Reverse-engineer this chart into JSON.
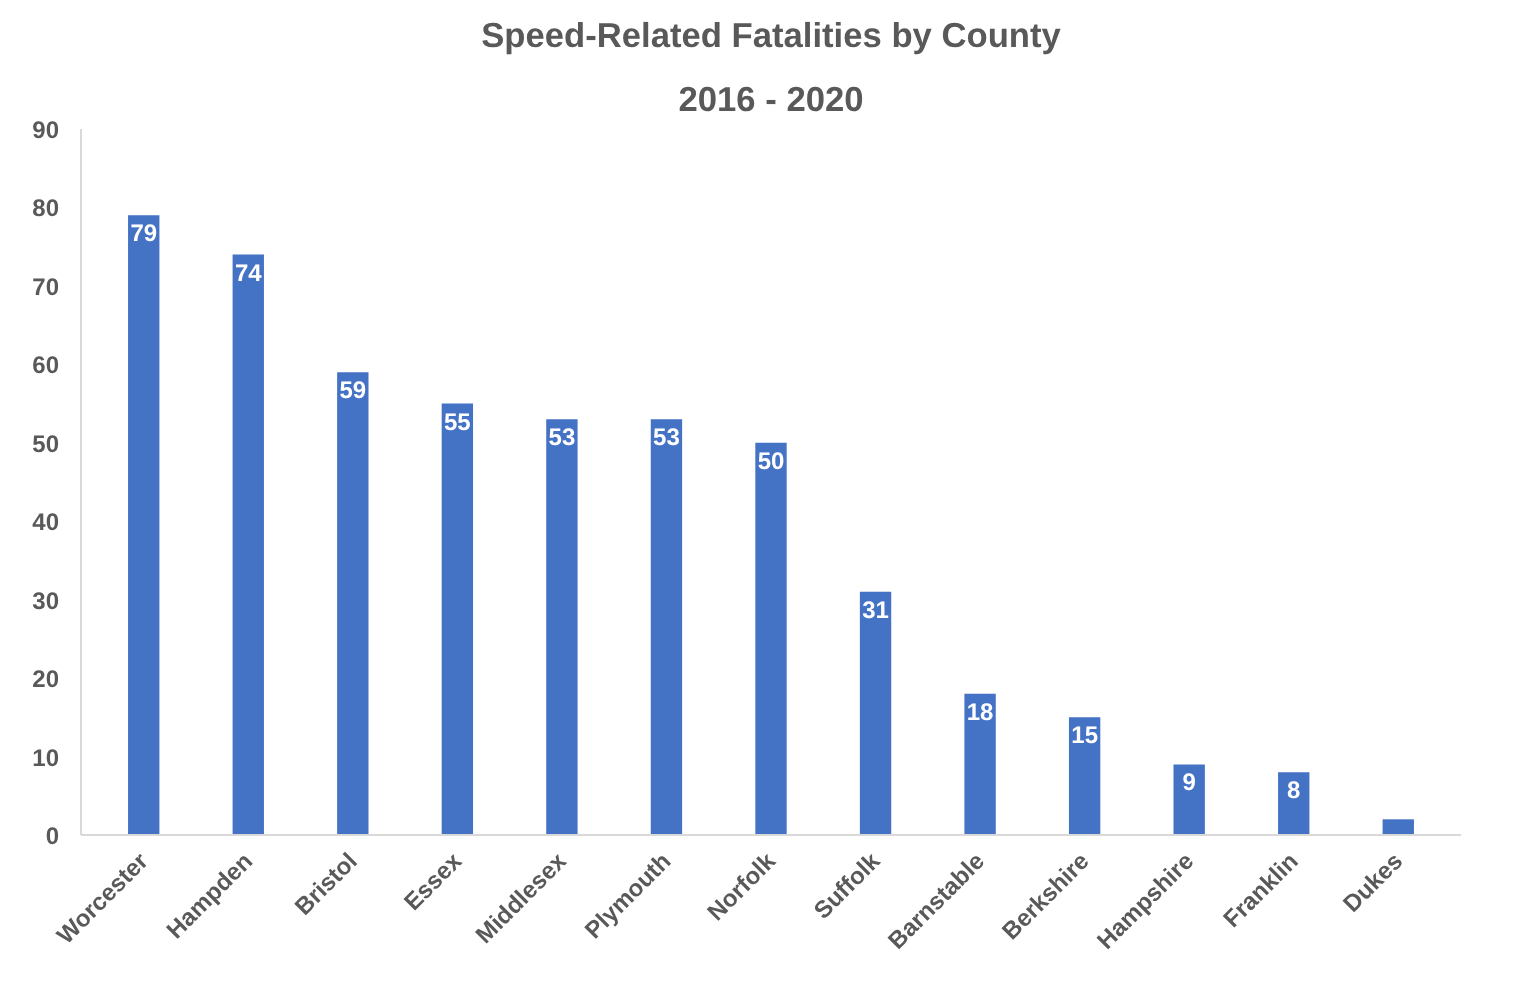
{
  "chart_data": {
    "type": "bar",
    "title": "Speed-Related Fatalities by County",
    "subtitle": "2016 - 2020",
    "categories": [
      "Worcester",
      "Hampden",
      "Bristol",
      "Essex",
      "Middlesex",
      "Plymouth",
      "Norfolk",
      "Suffolk",
      "Barnstable",
      "Berkshire",
      "Hampshire",
      "Franklin",
      "Dukes"
    ],
    "values": [
      79,
      74,
      59,
      55,
      53,
      53,
      50,
      31,
      18,
      15,
      9,
      8,
      2
    ],
    "value_labels": [
      "79",
      "74",
      "59",
      "55",
      "53",
      "53",
      "50",
      "31",
      "18",
      "15",
      "9",
      "8",
      null
    ],
    "color": "#4472c4",
    "ylim": [
      0,
      90
    ],
    "yticks": [
      0,
      10,
      20,
      30,
      40,
      50,
      60,
      70,
      80,
      90
    ],
    "grid": false
  }
}
